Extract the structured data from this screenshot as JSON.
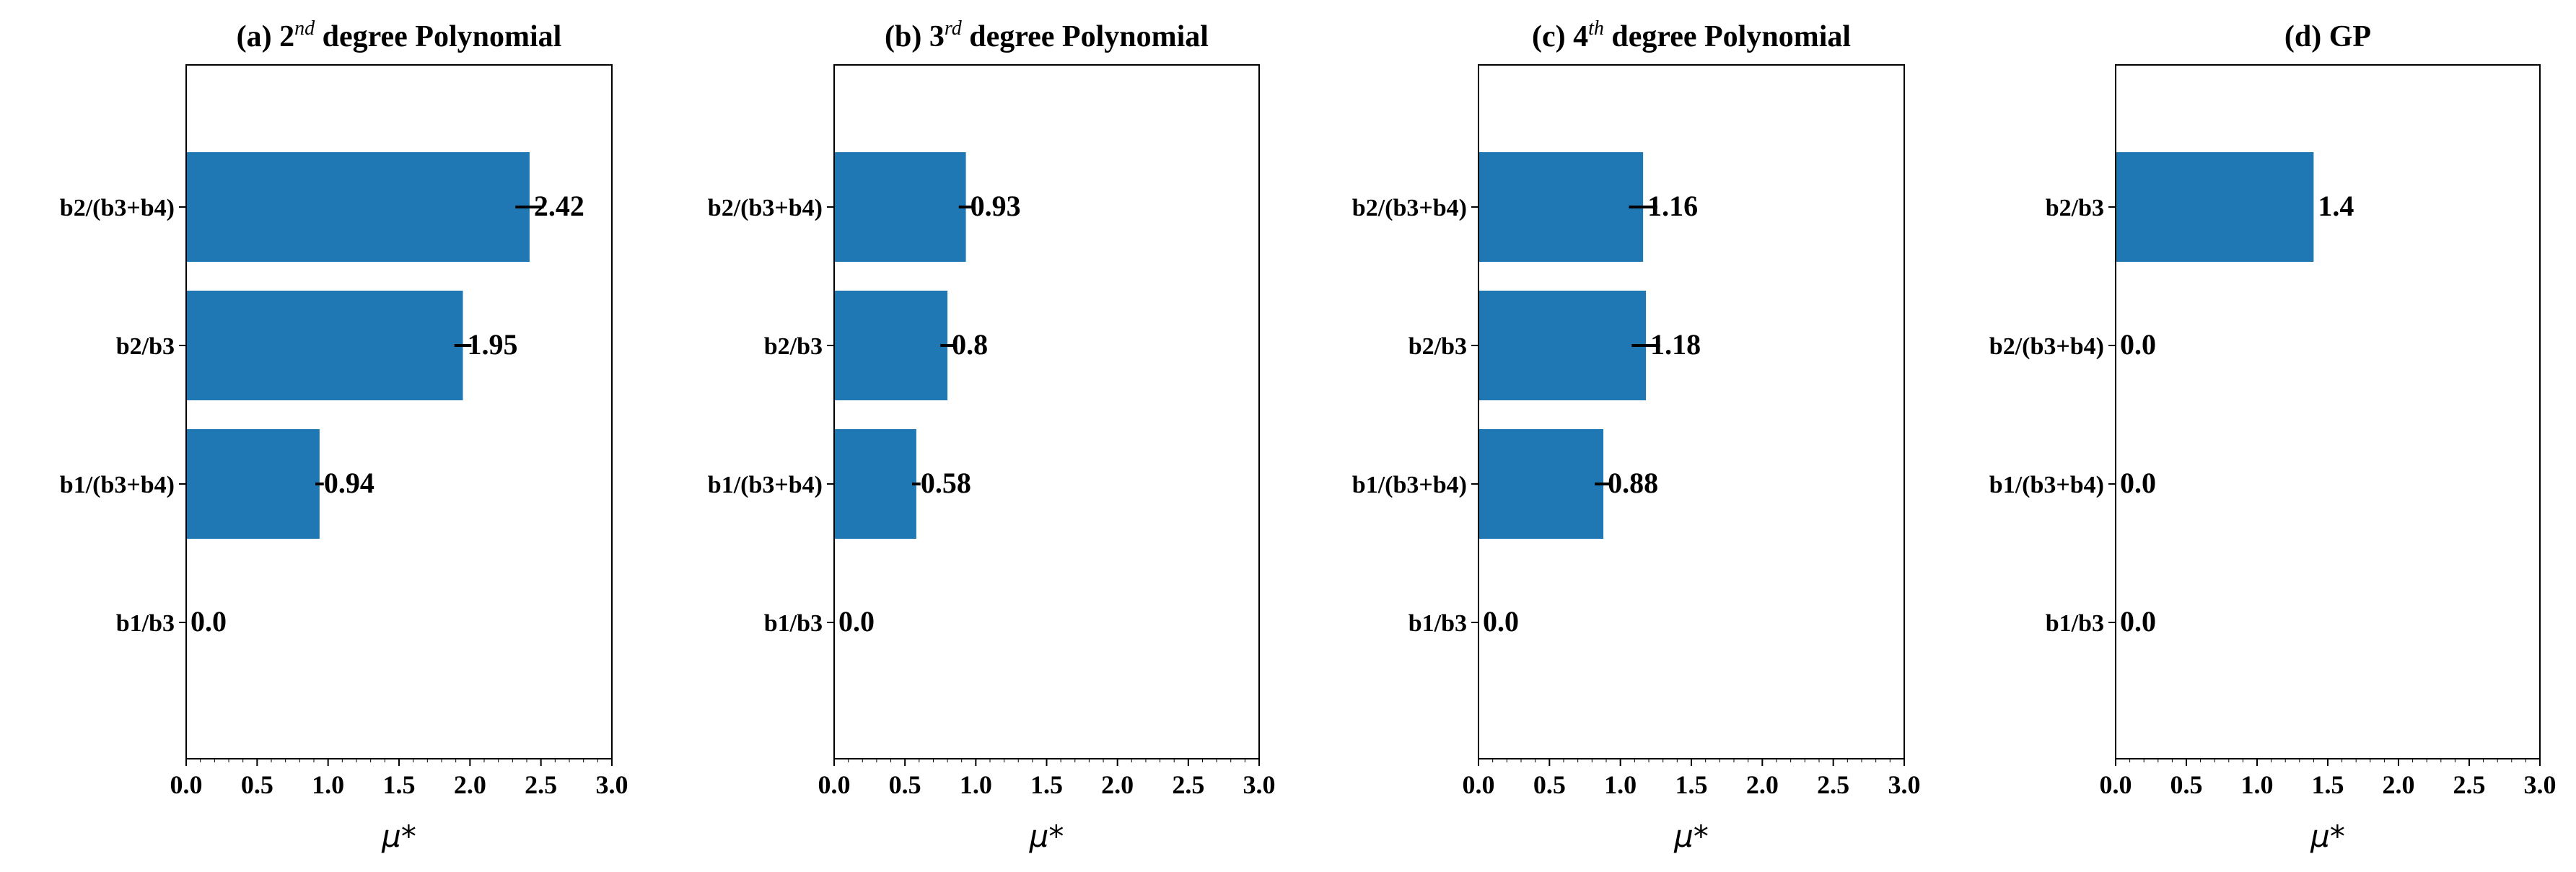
{
  "chart_data": [
    {
      "type": "bar",
      "orientation": "horizontal",
      "title": "(a) 2nd degree Polynomial",
      "title_parts": {
        "pre": "(a) 2",
        "sup": "nd",
        "post": " degree Polynomial"
      },
      "categories": [
        "b2/(b3+b4)",
        "b2/b3",
        "b1/(b3+b4)",
        "b1/b3"
      ],
      "values": [
        2.42,
        1.95,
        0.94,
        0.0
      ],
      "labels": [
        "2.42",
        "1.95",
        "0.94",
        "0.0"
      ],
      "error": [
        0.1,
        0.06,
        0.03,
        0.0
      ],
      "xlabel": "μ*",
      "xlim": [
        0,
        3.0
      ],
      "xticks": [
        "0.0",
        "0.5",
        "1.0",
        "1.5",
        "2.0",
        "2.5",
        "3.0"
      ],
      "color": "#1f77b4"
    },
    {
      "type": "bar",
      "orientation": "horizontal",
      "title": "(b) 3rd degree Polynomial",
      "title_parts": {
        "pre": "(b) 3",
        "sup": "rd",
        "post": " degree Polynomial"
      },
      "categories": [
        "b2/(b3+b4)",
        "b2/b3",
        "b1/(b3+b4)",
        "b1/b3"
      ],
      "values": [
        0.93,
        0.8,
        0.58,
        0.0
      ],
      "labels": [
        "0.93",
        "0.8",
        "0.58",
        "0.0"
      ],
      "error": [
        0.05,
        0.05,
        0.03,
        0.0
      ],
      "xlabel": "μ*",
      "xlim": [
        0,
        3.0
      ],
      "xticks": [
        "0.0",
        "0.5",
        "1.0",
        "1.5",
        "2.0",
        "2.5",
        "3.0"
      ],
      "color": "#1f77b4"
    },
    {
      "type": "bar",
      "orientation": "horizontal",
      "title": "(c) 4th degree Polynomial",
      "title_parts": {
        "pre": "(c) 4",
        "sup": "th",
        "post": " degree Polynomial"
      },
      "categories": [
        "b2/(b3+b4)",
        "b2/b3",
        "b1/(b3+b4)",
        "b1/b3"
      ],
      "values": [
        1.16,
        1.18,
        0.88,
        0.0
      ],
      "labels": [
        "1.16",
        "1.18",
        "0.88",
        "0.0"
      ],
      "error": [
        0.1,
        0.1,
        0.06,
        0.0
      ],
      "xlabel": "μ*",
      "xlim": [
        0,
        3.0
      ],
      "xticks": [
        "0.0",
        "0.5",
        "1.0",
        "1.5",
        "2.0",
        "2.5",
        "3.0"
      ],
      "color": "#1f77b4"
    },
    {
      "type": "bar",
      "orientation": "horizontal",
      "title": "(d) GP",
      "title_parts": {
        "pre": "(d) GP",
        "sup": "",
        "post": ""
      },
      "categories": [
        "b2/b3",
        "b2/(b3+b4)",
        "b1/(b3+b4)",
        "b1/b3"
      ],
      "values": [
        1.4,
        0.0,
        0.0,
        0.0
      ],
      "labels": [
        "1.4",
        "0.0",
        "0.0",
        "0.0"
      ],
      "error": [
        0.0,
        0.0,
        0.0,
        0.0
      ],
      "xlabel": "μ*",
      "xlim": [
        0,
        3.0
      ],
      "xticks": [
        "0.0",
        "0.5",
        "1.0",
        "1.5",
        "2.0",
        "2.5",
        "3.0"
      ],
      "color": "#1f77b4"
    }
  ]
}
